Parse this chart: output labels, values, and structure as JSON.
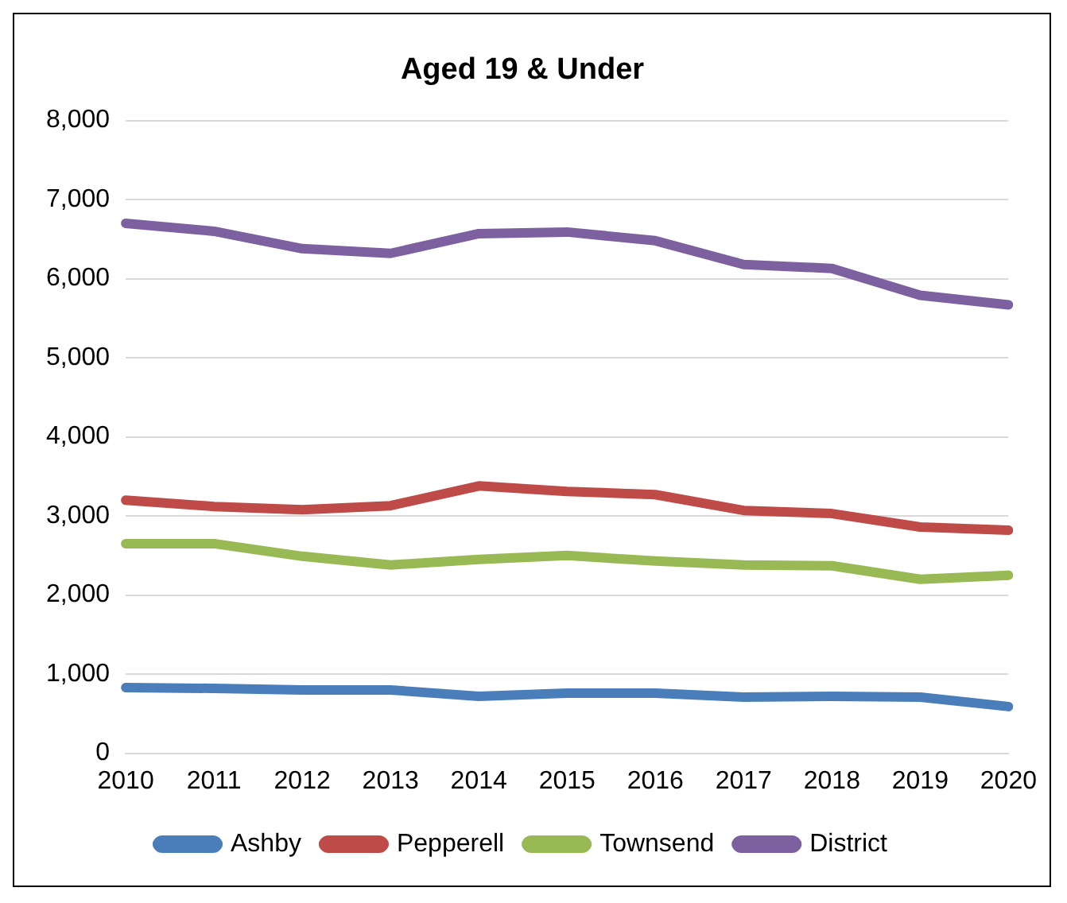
{
  "chart_data": {
    "type": "line",
    "title": "Aged 19 & Under",
    "categories": [
      "2010",
      "2011",
      "2012",
      "2013",
      "2014",
      "2015",
      "2016",
      "2017",
      "2018",
      "2019",
      "2020"
    ],
    "series": [
      {
        "name": "Ashby",
        "color": "#4a7ebb",
        "values": [
          830,
          820,
          800,
          800,
          720,
          760,
          760,
          710,
          720,
          710,
          590
        ]
      },
      {
        "name": "Pepperell",
        "color": "#be4b48",
        "values": [
          3200,
          3120,
          3080,
          3130,
          3380,
          3310,
          3270,
          3070,
          3030,
          2860,
          2820
        ]
      },
      {
        "name": "Townsend",
        "color": "#98b954",
        "values": [
          2650,
          2650,
          2490,
          2380,
          2450,
          2500,
          2430,
          2380,
          2370,
          2200,
          2250
        ]
      },
      {
        "name": "District",
        "color": "#7d60a0",
        "values": [
          6700,
          6600,
          6380,
          6320,
          6570,
          6590,
          6480,
          6180,
          6130,
          5790,
          5670
        ]
      }
    ],
    "ylim": [
      0,
      8000
    ],
    "yticks": [
      0,
      {
        "value": 1000,
        "label": "1,000"
      },
      {
        "value": 2000,
        "label": "2,000"
      },
      {
        "value": 3000,
        "label": "3,000"
      },
      {
        "value": 4000,
        "label": "4,000"
      },
      {
        "value": 5000,
        "label": "5,000"
      },
      {
        "value": 6000,
        "label": "6,000"
      },
      {
        "value": 7000,
        "label": "7,000"
      },
      {
        "value": 8000,
        "label": "8,000"
      }
    ],
    "grid": "y",
    "legend": "bottom",
    "marker": "none",
    "line_style": "solid"
  }
}
